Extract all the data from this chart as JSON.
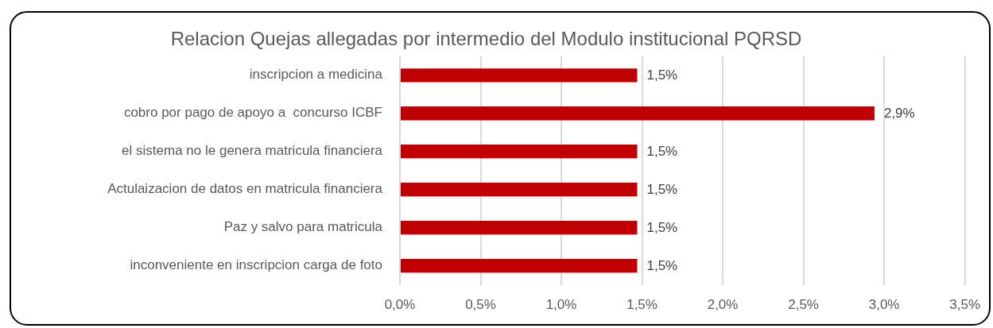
{
  "chart_data": {
    "type": "bar",
    "orientation": "horizontal",
    "title": "Relacion Quejas allegadas por intermedio del Modulo institucional PQRSD",
    "categories": [
      "inscripcion a medicina",
      "cobro por pago de apoyo a  concurso ICBF",
      "el sistema no le genera matricula financiera",
      "Actulaizacion de datos en matricula financiera",
      "Paz y salvo para matricula",
      "inconveniente en inscripcion carga de foto"
    ],
    "values": [
      1.47,
      2.94,
      1.47,
      1.47,
      1.47,
      1.47
    ],
    "value_labels": [
      "1,5%",
      "2,9%",
      "1,5%",
      "1,5%",
      "1,5%",
      "1,5%"
    ],
    "color": "#c00000",
    "xlim": [
      0,
      3.5
    ],
    "xticks": [
      {
        "value": 0,
        "label": "0,0%"
      },
      {
        "value": 0.5,
        "label": "0,5%"
      },
      {
        "value": 1,
        "label": "1,0%"
      },
      {
        "value": 1.5,
        "label": "1,5%"
      },
      {
        "value": 2,
        "label": "2,0%"
      },
      {
        "value": 2.5,
        "label": "2,5%"
      },
      {
        "value": 3,
        "label": "3,0%"
      },
      {
        "value": 3.5,
        "label": "3,5%"
      }
    ],
    "grid": "x"
  }
}
